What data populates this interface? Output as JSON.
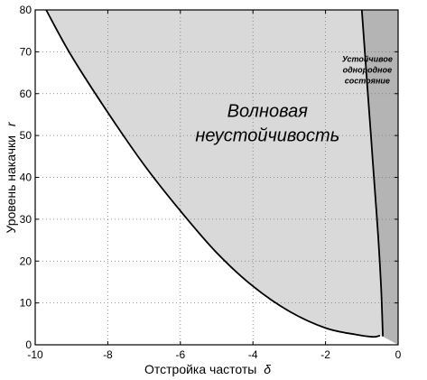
{
  "chart_data": {
    "type": "area",
    "xlabel": "Отстройка частоты",
    "xlabel_symbol": "δ",
    "ylabel": "Уровень накачки",
    "ylabel_symbol": "r",
    "xlim": [
      -10,
      0
    ],
    "ylim": [
      0,
      80
    ],
    "x_ticks": [
      "-10",
      "-8",
      "-6",
      "-4",
      "-2",
      "0"
    ],
    "y_ticks": [
      "0",
      "10",
      "20",
      "30",
      "40",
      "50",
      "60",
      "70",
      "80"
    ],
    "grid": "dotted",
    "series": [
      {
        "role": "lower-boundary",
        "x": [
          -9.7,
          -9.0,
          -8.0,
          -7.0,
          -6.0,
          -5.0,
          -4.0,
          -3.0,
          -2.0,
          -1.2,
          -0.7,
          -0.5
        ],
        "y": [
          80,
          69,
          55.5,
          43,
          32,
          22,
          14,
          8,
          4,
          2.5,
          1.9,
          2.2
        ]
      },
      {
        "role": "upper-boundary",
        "x": [
          -1.0,
          -0.95,
          -0.85,
          -0.75,
          -0.65,
          -0.55,
          -0.47,
          -0.42
        ],
        "y": [
          80,
          74,
          62,
          50,
          38,
          26,
          14,
          2
        ]
      }
    ],
    "regions": [
      {
        "name": "wave-instability",
        "color": "#d9d9d9",
        "lines": [
          "Волновая",
          "неустойчивость"
        ],
        "label_at": [
          -3.6,
          51.5
        ]
      },
      {
        "name": "stable-homogeneous",
        "color": "#b4b4b4",
        "lines": [
          "Устойчивое",
          "однородное",
          "состояние"
        ],
        "label_at": [
          -0.85,
          65
        ]
      }
    ]
  }
}
